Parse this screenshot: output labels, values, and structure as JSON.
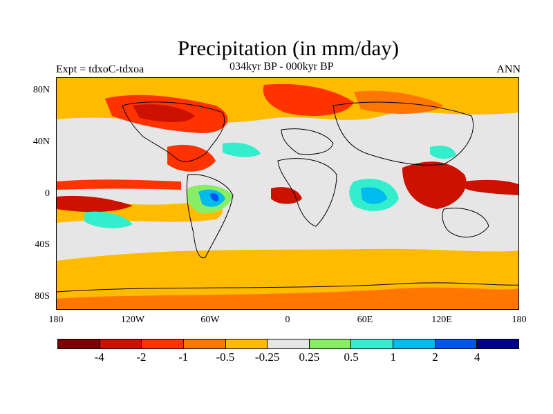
{
  "title": "Precipitation (in mm/day)",
  "subtitle": "034kyr BP - 000kyr BP",
  "expt_label": "Expt = tdxoC-tdxoa",
  "season": "ANN",
  "y_axis_labels": [
    "80N",
    "40N",
    "0",
    "40S",
    "80S"
  ],
  "x_axis_labels": [
    "180",
    "120W",
    "60W",
    "0",
    "60E",
    "120E",
    "180"
  ],
  "colorbar": {
    "colors": [
      "#7f0000",
      "#cc1100",
      "#ff3300",
      "#ff7700",
      "#ffbb00",
      "#e6e6e6",
      "#88ee66",
      "#33eecc",
      "#00bbee",
      "#0055ee",
      "#000088"
    ],
    "labels": [
      "-4",
      "-2",
      "-1",
      "-0.5",
      "-0.25",
      "0.25",
      "0.5",
      "1",
      "2",
      "4"
    ]
  }
}
